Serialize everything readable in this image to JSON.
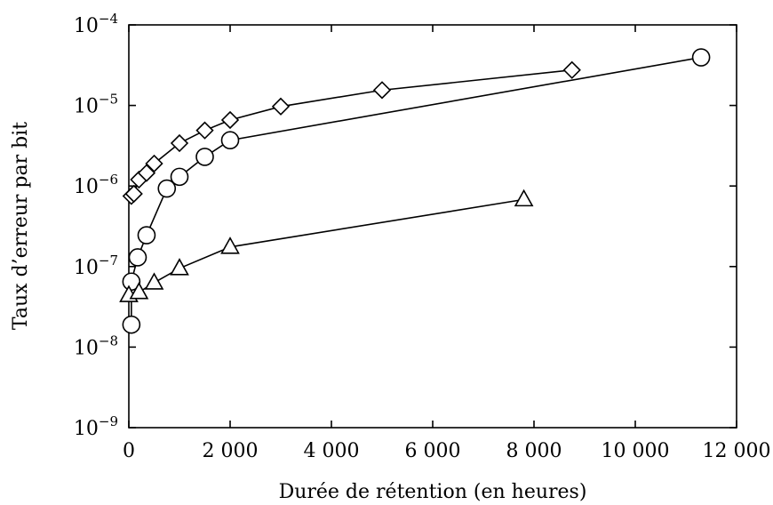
{
  "chart_data": {
    "type": "line",
    "title": "",
    "xlabel": "Durée de rétention (en heures)",
    "ylabel": "Taux d’erreur par bit",
    "xlim": [
      0,
      12000
    ],
    "ylim": [
      1e-09,
      0.0001
    ],
    "yscale": "log",
    "grid": false,
    "legend": "none",
    "x_ticks": [
      {
        "value": 0,
        "label": "0"
      },
      {
        "value": 2000,
        "label": "2 000"
      },
      {
        "value": 4000,
        "label": "4 000"
      },
      {
        "value": 6000,
        "label": "6 000"
      },
      {
        "value": 8000,
        "label": "8 000"
      },
      {
        "value": 10000,
        "label": "10 000"
      },
      {
        "value": 12000,
        "label": "12 000"
      }
    ],
    "y_ticks": [
      {
        "value": 1e-09,
        "base": "10",
        "exp": "−9"
      },
      {
        "value": 1e-08,
        "base": "10",
        "exp": "−8"
      },
      {
        "value": 1e-07,
        "base": "10",
        "exp": "−7"
      },
      {
        "value": 1e-06,
        "base": "10",
        "exp": "−6"
      },
      {
        "value": 1e-05,
        "base": "10",
        "exp": "−5"
      },
      {
        "value": 0.0001,
        "base": "10",
        "exp": "−4"
      }
    ],
    "series": [
      {
        "marker": "diamond",
        "x": [
          50,
          100,
          200,
          350,
          500,
          1000,
          1500,
          2000,
          3000,
          5000,
          8750
        ],
        "y": [
          7.5e-07,
          8e-07,
          1.2e-06,
          1.45e-06,
          1.9e-06,
          3.4e-06,
          4.9e-06,
          6.6e-06,
          9.7e-06,
          1.55e-05,
          2.75e-05
        ]
      },
      {
        "marker": "circle",
        "x": [
          50,
          50,
          175,
          350,
          750,
          1000,
          1500,
          2000,
          11300
        ],
        "y": [
          1.9e-08,
          6.5e-08,
          1.3e-07,
          2.45e-07,
          9.3e-07,
          1.3e-06,
          2.3e-06,
          3.7e-06,
          3.95e-05
        ]
      },
      {
        "marker": "triangle",
        "x": [
          0,
          200,
          500,
          1000,
          2000,
          7800
        ],
        "y": [
          4.4e-08,
          4.8e-08,
          6.3e-08,
          9.5e-08,
          1.75e-07,
          6.8e-07
        ]
      }
    ]
  }
}
